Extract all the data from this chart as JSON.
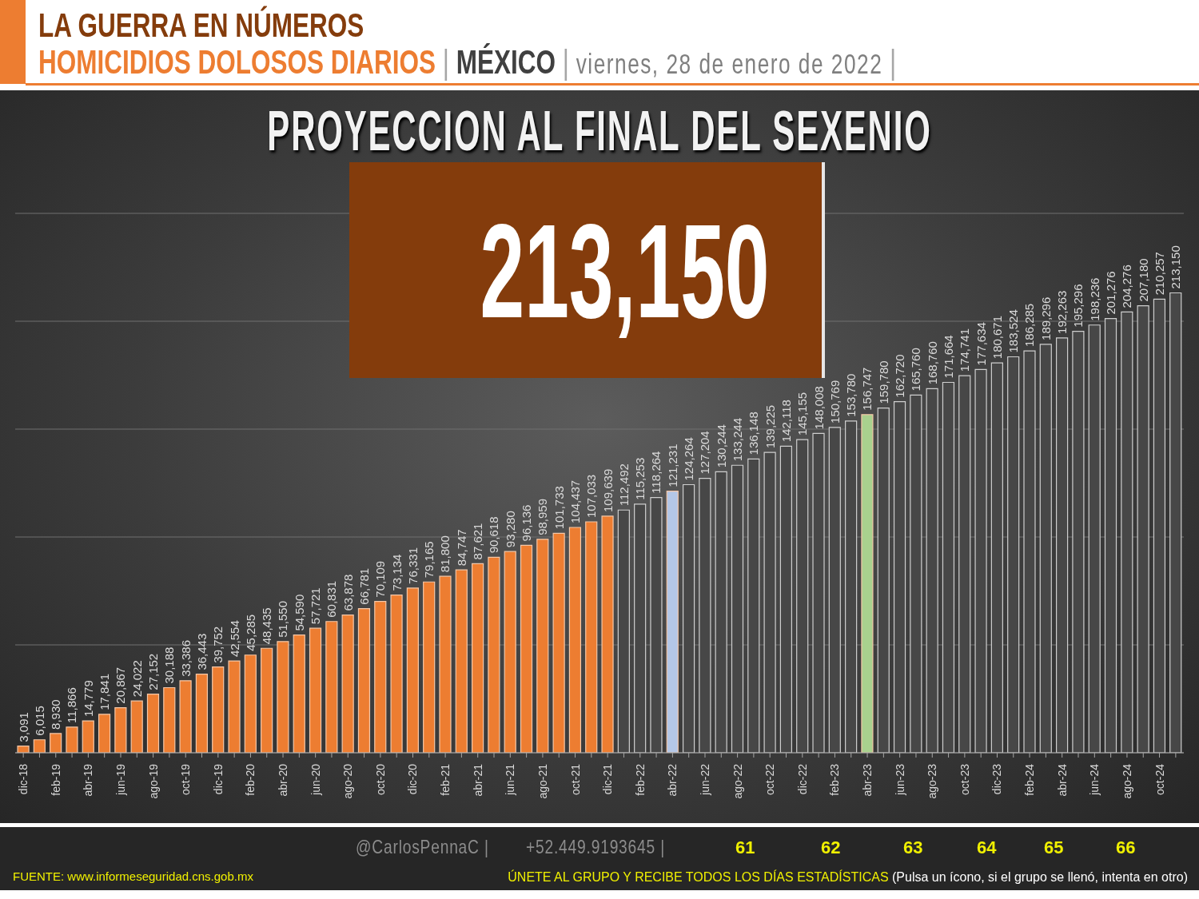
{
  "chart_data": {
    "type": "bar",
    "title": "LA GUERRA EN NÚMEROS",
    "subtitle": "HOMICIDIOS DOLOSOS DIARIOS | MÉXICO | viernes, 28 de enero de 2022 |",
    "categories": [
      "dic-18",
      null,
      "feb-19",
      null,
      "abr-19",
      null,
      "jun-19",
      null,
      "ago-19",
      null,
      "oct-19",
      null,
      "dic-19",
      null,
      "feb-20",
      null,
      "abr-20",
      null,
      "jun-20",
      null,
      "ago-20",
      null,
      "oct-20",
      null,
      "dic-20",
      null,
      "feb-21",
      null,
      "abr-21",
      null,
      "jun-21",
      null,
      "ago-21",
      null,
      "oct-21",
      null,
      "dic-21",
      null,
      "feb-22",
      null,
      "abr-22",
      null,
      "jun-22",
      null,
      "ago-22",
      null,
      "oct-22",
      null,
      "dic-22",
      null,
      "feb-23",
      null,
      "abr-23",
      null,
      "jun-23",
      null,
      "ago-23",
      null,
      "oct-23",
      null,
      "dic-23",
      null,
      "feb-24",
      null,
      "abr-24",
      null,
      "jun-24",
      null,
      "ago-24",
      null,
      "oct-24",
      null
    ],
    "values": [
      3091,
      6015,
      8930,
      11866,
      14779,
      17841,
      20867,
      24022,
      27152,
      30188,
      33386,
      36443,
      39752,
      42554,
      45285,
      48435,
      51550,
      54590,
      57721,
      60831,
      63878,
      66781,
      70109,
      73134,
      76331,
      79165,
      81800,
      84747,
      87621,
      90618,
      93280,
      96136,
      98959,
      101733,
      104437,
      107033,
      109639,
      112492,
      115253,
      118264,
      121231,
      124264,
      127204,
      130244,
      133244,
      136148,
      139225,
      142118,
      145155,
      148008,
      150769,
      153780,
      156747,
      159780,
      162720,
      165760,
      168760,
      171664,
      174741,
      177634,
      180671,
      183524,
      186285,
      189296,
      192263,
      195296,
      198236,
      201276,
      204276,
      207180,
      210257,
      213150
    ],
    "value_labels": [
      "3,091",
      "6,015",
      "8,930",
      "11,866",
      "14,779",
      "17,841",
      "20,867",
      "24,022",
      "27,152",
      "30,188",
      "33,386",
      "36,443",
      "39,752",
      "42,554",
      "45,285",
      "48,435",
      "51,550",
      "54,590",
      "57,721",
      "60,831",
      "63,878",
      "66,781",
      "70,109",
      "73,134",
      "76,331",
      "79,165",
      "81,800",
      "84,747",
      "87,621",
      "90,618",
      "93,280",
      "96,136",
      "98,959",
      "101,733",
      "104,437",
      "107,033",
      "109,639",
      "112,492",
      "115,253",
      "118,264",
      "121,231",
      "124,264",
      "127,204",
      "130,244",
      "133,244",
      "136,148",
      "139,225",
      "142,118",
      "145,155",
      "148,008",
      "150,769",
      "153,780",
      "156,747",
      "159,780",
      "162,720",
      "165,760",
      "168,760",
      "171,664",
      "174,741",
      "177,634",
      "180,671",
      "183,524",
      "186,285",
      "189,296",
      "192,263",
      "195,296",
      "198,236",
      "201,276",
      "204,276",
      "207,180",
      "210,257",
      "213,150"
    ],
    "colors": [
      "#ed7d31",
      "#ed7d31",
      "#ed7d31",
      "#ed7d31",
      "#ed7d31",
      "#ed7d31",
      "#ed7d31",
      "#ed7d31",
      "#ed7d31",
      "#ed7d31",
      "#ed7d31",
      "#ed7d31",
      "#ed7d31",
      "#ed7d31",
      "#ed7d31",
      "#ed7d31",
      "#ed7d31",
      "#ed7d31",
      "#ed7d31",
      "#ed7d31",
      "#ed7d31",
      "#ed7d31",
      "#ed7d31",
      "#ed7d31",
      "#ed7d31",
      "#ed7d31",
      "#ed7d31",
      "#ed7d31",
      "#ed7d31",
      "#ed7d31",
      "#ed7d31",
      "#ed7d31",
      "#ed7d31",
      "#ed7d31",
      "#ed7d31",
      "#ed7d31",
      "#ed7d31",
      "#474747",
      "#474747",
      "#474747",
      "#b4c7e7",
      "#474747",
      "#474747",
      "#474747",
      "#474747",
      "#474747",
      "#474747",
      "#474747",
      "#474747",
      "#474747",
      "#474747",
      "#474747",
      "#a9d18e",
      "#474747",
      "#474747",
      "#474747",
      "#474747",
      "#474747",
      "#474747",
      "#474747",
      "#474747",
      "#474747",
      "#474747",
      "#474747",
      "#474747",
      "#474747",
      "#474747",
      "#474747",
      "#474747",
      "#474747",
      "#474747",
      "#474747"
    ],
    "ylim": [
      0,
      250000
    ],
    "yticks": [
      {
        "value": 0,
        "label": null
      },
      {
        "value": 50000,
        "label": null
      },
      {
        "value": 100000,
        "label": null
      },
      {
        "value": 150000,
        "label": null
      },
      {
        "value": 200000,
        "label": null
      },
      {
        "value": 250000,
        "label": null
      }
    ],
    "tick_labels": "x",
    "grid": "y",
    "annotations": [
      "PROYECCION AL FINAL DEL SEXENIO",
      "213,150",
      "@CarlosPennaC |",
      "+52.449.9193645 |",
      "61",
      "62",
      "63",
      "64",
      "65",
      "66",
      "FUENTE: www.informeseguridad.cns.gob.mx",
      "ÚNETE AL GRUPO Y RECIBE TODOS LOS DÍAS ESTADÍSTICAS (Pulsa un ícono, si el grupo se llenó, intenta en otro)"
    ]
  }
}
